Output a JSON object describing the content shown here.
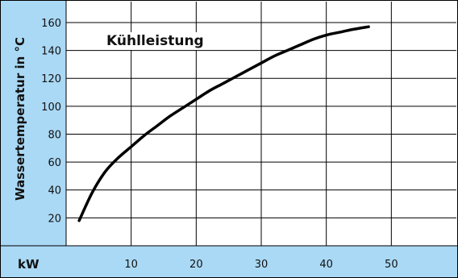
{
  "chart_data": {
    "type": "line",
    "title": "",
    "xlabel": "kW",
    "ylabel": "Wassertemperatur in °C",
    "x_ticks": [
      10,
      20,
      30,
      40,
      50
    ],
    "y_ticks": [
      20,
      40,
      60,
      80,
      100,
      120,
      140,
      160
    ],
    "xlim": [
      0,
      60
    ],
    "ylim": [
      0,
      175
    ],
    "grid": true,
    "annotations": [
      "Kühlleistung"
    ],
    "series": [
      {
        "name": "Kühlleistung",
        "x": [
          2,
          4,
          6,
          8,
          10,
          12,
          14,
          16,
          18,
          20,
          22,
          24,
          26,
          28,
          30,
          32,
          34,
          36,
          38,
          40,
          42,
          44,
          46.5
        ],
        "y": [
          18,
          38,
          53,
          63,
          71,
          79,
          86,
          93,
          99,
          105,
          111,
          116,
          121,
          126,
          131,
          136,
          140,
          144,
          148,
          151,
          153,
          155,
          157
        ]
      }
    ]
  },
  "colors": {
    "axis_band": "#aad9f5",
    "plot_background": "#ffffff",
    "grid": "#000000",
    "curve": "#000000"
  }
}
